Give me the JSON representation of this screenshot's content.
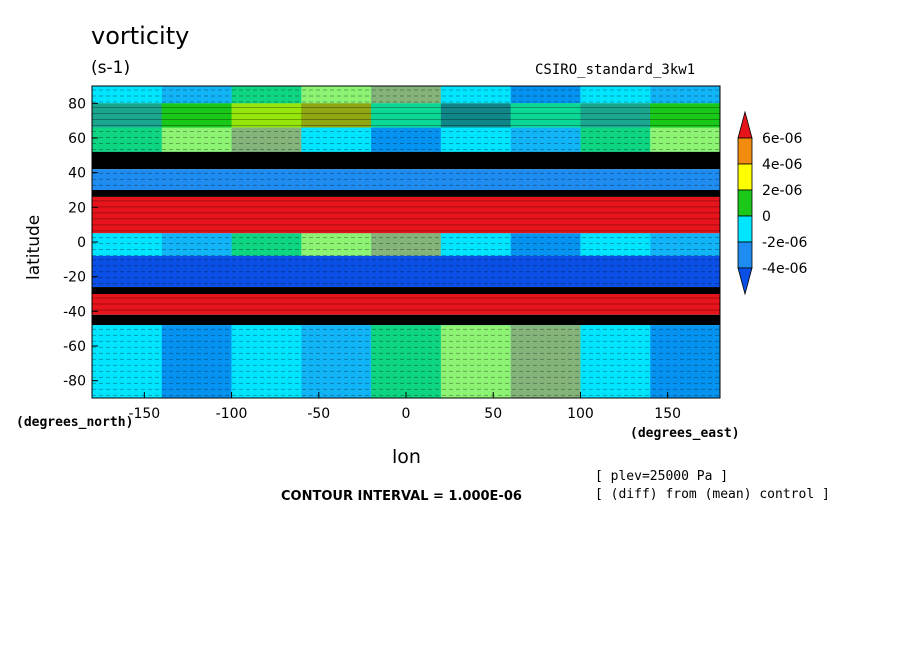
{
  "chart_data": {
    "type": "heatmap",
    "title": "vorticity",
    "units": "(s-1)",
    "model_label": "CSIRO_standard_3kw1",
    "xlabel": "lon",
    "ylabel": "latitude",
    "x_units": "(degrees_east)",
    "y_units": "(degrees_north)",
    "xlim": [
      -180,
      180
    ],
    "ylim": [
      -90,
      90
    ],
    "x_ticks": [
      -150,
      -100,
      -50,
      0,
      50,
      100,
      150
    ],
    "y_ticks": [
      80,
      60,
      40,
      20,
      0,
      -20,
      -40,
      -60,
      -80
    ],
    "contour_interval_text": "CONTOUR INTERVAL = 1.000E-06",
    "annotations": [
      "[ plev=25000 Pa ]",
      "[ (diff) from (mean) control ]"
    ],
    "colorbar": {
      "labels": [
        "6e-06",
        "4e-06",
        "2e-06",
        "0",
        "-2e-06",
        "-4e-06"
      ],
      "levels": [
        {
          "range": [
            6e-06,
            null
          ],
          "color": "#e8141b"
        },
        {
          "range": [
            4e-06,
            6e-06
          ],
          "color": "#f28c0f"
        },
        {
          "range": [
            2e-06,
            4e-06
          ],
          "color": "#ffff00"
        },
        {
          "range": [
            0,
            2e-06
          ],
          "color": "#19c819"
        },
        {
          "range": [
            -2e-06,
            0
          ],
          "color": "#00e5ff"
        },
        {
          "range": [
            -4e-06,
            -2e-06
          ],
          "color": "#1e8cf0"
        },
        {
          "range": [
            null,
            -4e-06
          ],
          "color": "#0a50e6"
        }
      ]
    },
    "bands": [
      {
        "lat": [
          80,
          90
        ],
        "pattern": "mixed",
        "value": -1e-06
      },
      {
        "lat": [
          66,
          80
        ],
        "pattern": "mixed",
        "value": 1e-06
      },
      {
        "lat": [
          52,
          66
        ],
        "pattern": "mixed",
        "value": -1e-06
      },
      {
        "lat": [
          42,
          52
        ],
        "pattern": "dense-contours",
        "value": -5e-06
      },
      {
        "lat": [
          30,
          42
        ],
        "pattern": "blue",
        "value": -4e-06
      },
      {
        "lat": [
          26,
          30
        ],
        "pattern": "dense-contours",
        "value": 0
      },
      {
        "lat": [
          5,
          26
        ],
        "pattern": "red",
        "value": 7e-06
      },
      {
        "lat": [
          -8,
          5
        ],
        "pattern": "mixed",
        "value": -1e-06
      },
      {
        "lat": [
          -26,
          -8
        ],
        "pattern": "blue",
        "value": -5e-06
      },
      {
        "lat": [
          -30,
          -26
        ],
        "pattern": "dense-contours",
        "value": 0
      },
      {
        "lat": [
          -42,
          -30
        ],
        "pattern": "red",
        "value": 7e-06
      },
      {
        "lat": [
          -48,
          -42
        ],
        "pattern": "dense-contours",
        "value": 3e-06
      },
      {
        "lat": [
          -90,
          -48
        ],
        "pattern": "mixed",
        "value": -1e-06
      }
    ]
  }
}
